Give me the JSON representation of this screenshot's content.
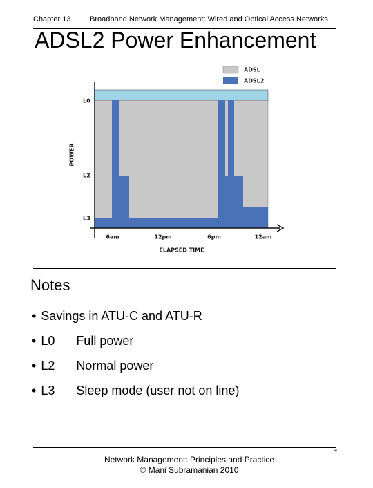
{
  "header": {
    "chapter": "Chapter 13",
    "book": "Broadband Network Management:  Wired and Optical Access Networks"
  },
  "title": "ADSL2 Power Enhancement",
  "figure": {
    "legend": [
      "ADSL",
      "ADSL2"
    ],
    "y_axis_label": "POWER",
    "levels": [
      "L0",
      "L2",
      "L3"
    ],
    "times": [
      "6am",
      "12pm",
      "6pm",
      "12am"
    ],
    "x_axis_label": "ELAPSED TIME"
  },
  "notes": {
    "heading": "Notes",
    "items": [
      {
        "text": "Savings in ATU-C and ATU-R"
      },
      {
        "term": "L0",
        "text": "Full power"
      },
      {
        "term": "L2",
        "text": "Normal power"
      },
      {
        "term": "L3",
        "text": "Sleep mode (user not on line)"
      }
    ]
  },
  "footer": {
    "line1": "Network Management: Principles and Practice",
    "line2": "© Mani Subramanian 2010",
    "mark": "*"
  }
}
